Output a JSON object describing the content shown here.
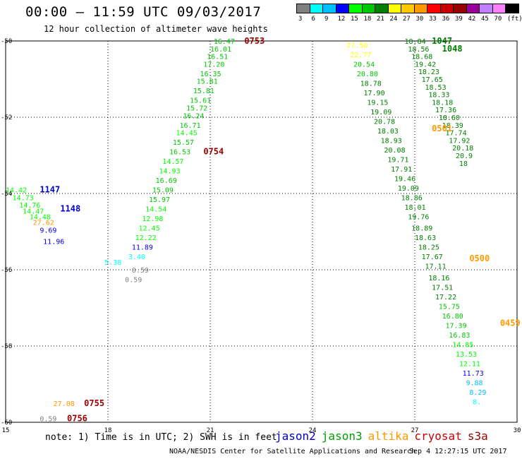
{
  "title": "00:00 – 11:59 UTC 09/03/2017",
  "subtitle": "12 hour collection of altimeter wave heights",
  "color_scale": {
    "labels": [
      "3",
      "6",
      "9",
      "12",
      "15",
      "18",
      "21",
      "24",
      "27",
      "30",
      "33",
      "36",
      "39",
      "42",
      "45",
      "70",
      "(ft)"
    ],
    "colors": [
      "#808080",
      "#00ffff",
      "#00bfff",
      "#0000ff",
      "#00ff00",
      "#00c800",
      "#008000",
      "#ffff00",
      "#ffc800",
      "#ff9900",
      "#ff0000",
      "#c80000",
      "#990000",
      "#990099",
      "#c080ff",
      "#ff80ff",
      "#000000"
    ]
  },
  "note": "note: 1) Time is in UTC; 2) SWH is in feet",
  "legend": [
    {
      "name": "jason2",
      "color": "#0000cc"
    },
    {
      "name": "jason3",
      "color": "#00a000"
    },
    {
      "name": "altika",
      "color": "#ff9900"
    },
    {
      "name": "cryosat",
      "color": "#cc0000"
    },
    {
      "name": "s3a",
      "color": "#990000"
    }
  ],
  "credit": "NOAA/NESDIS Center for Satellite Applications and Research",
  "timestamp": "Sep  4 12:27:15 UTC 2017",
  "chart_data": {
    "type": "scatter",
    "x_ticks": [
      "15",
      "18",
      "21",
      "24",
      "27",
      "30"
    ],
    "y_ticks": [
      "-50",
      "-52",
      "-54",
      "-56",
      "-58",
      "-60"
    ],
    "xlim": [
      15,
      30
    ],
    "ylim": [
      -60,
      -50
    ],
    "grid": true,
    "time_labels": [
      {
        "text": "1147",
        "lon": 16.0,
        "lat": -53.9,
        "color": "#0000cc"
      },
      {
        "text": "1148",
        "lon": 16.6,
        "lat": -54.4,
        "color": "#0000cc"
      },
      {
        "text": "0753",
        "lon": 22.0,
        "lat": -50.0,
        "color": "#990000"
      },
      {
        "text": "0754",
        "lon": 20.8,
        "lat": -52.9,
        "color": "#990000"
      },
      {
        "text": "0755",
        "lon": 17.3,
        "lat": -59.5,
        "color": "#990000"
      },
      {
        "text": "0756",
        "lon": 16.8,
        "lat": -59.9,
        "color": "#990000"
      },
      {
        "text": "1047",
        "lon": 27.5,
        "lat": -50.0,
        "color": "#008000"
      },
      {
        "text": "1048",
        "lon": 27.8,
        "lat": -50.2,
        "color": "#008000"
      },
      {
        "text": "0501",
        "lon": 27.5,
        "lat": -52.3,
        "color": "#ff9900"
      },
      {
        "text": "0500",
        "lon": 28.6,
        "lat": -55.7,
        "color": "#ff9900"
      },
      {
        "text": "0459",
        "lon": 29.5,
        "lat": -57.4,
        "color": "#ff9900"
      }
    ],
    "points": [
      {
        "v": "14.42",
        "lon": 15.0,
        "lat": -53.9,
        "color": "#00ff00"
      },
      {
        "v": "14.73",
        "lon": 15.2,
        "lat": -54.1,
        "color": "#00ff00"
      },
      {
        "v": "14.76",
        "lon": 15.4,
        "lat": -54.3,
        "color": "#00ff00"
      },
      {
        "v": "14.47",
        "lon": 15.5,
        "lat": -54.45,
        "color": "#00ff00"
      },
      {
        "v": "14.48",
        "lon": 15.7,
        "lat": -54.6,
        "color": "#00ff00"
      },
      {
        "v": "27.62",
        "lon": 15.8,
        "lat": -54.75,
        "color": "#ff9900"
      },
      {
        "v": "9.69",
        "lon": 16.0,
        "lat": -54.95,
        "color": "#0000ff"
      },
      {
        "v": "11.96",
        "lon": 16.1,
        "lat": -55.25,
        "color": "#0000ff"
      },
      {
        "v": "16.47",
        "lon": 21.1,
        "lat": -50.0,
        "color": "#00c800"
      },
      {
        "v": "16.01",
        "lon": 21.0,
        "lat": -50.2,
        "color": "#00c800"
      },
      {
        "v": "16.51",
        "lon": 20.9,
        "lat": -50.4,
        "color": "#00c800"
      },
      {
        "v": "17.20",
        "lon": 20.8,
        "lat": -50.6,
        "color": "#00c800"
      },
      {
        "v": "16.35",
        "lon": 20.7,
        "lat": -50.85,
        "color": "#00c800"
      },
      {
        "v": "15.81",
        "lon": 20.6,
        "lat": -51.05,
        "color": "#00c800"
      },
      {
        "v": "15.81",
        "lon": 20.5,
        "lat": -51.3,
        "color": "#00c800"
      },
      {
        "v": "15.61",
        "lon": 20.4,
        "lat": -51.55,
        "color": "#00c800"
      },
      {
        "v": "15.72",
        "lon": 20.3,
        "lat": -51.75,
        "color": "#00c800"
      },
      {
        "v": "16.24",
        "lon": 20.2,
        "lat": -51.95,
        "color": "#00c800"
      },
      {
        "v": "16.71",
        "lon": 20.1,
        "lat": -52.2,
        "color": "#00c800"
      },
      {
        "v": "14.45",
        "lon": 20.0,
        "lat": -52.4,
        "color": "#00ff00"
      },
      {
        "v": "15.57",
        "lon": 19.9,
        "lat": -52.65,
        "color": "#00c800"
      },
      {
        "v": "16.53",
        "lon": 19.8,
        "lat": -52.9,
        "color": "#00c800"
      },
      {
        "v": "14.57",
        "lon": 19.6,
        "lat": -53.15,
        "color": "#00ff00"
      },
      {
        "v": "14.93",
        "lon": 19.5,
        "lat": -53.4,
        "color": "#00ff00"
      },
      {
        "v": "16.69",
        "lon": 19.4,
        "lat": -53.65,
        "color": "#00c800"
      },
      {
        "v": "15.09",
        "lon": 19.3,
        "lat": -53.9,
        "color": "#00c800"
      },
      {
        "v": "15.97",
        "lon": 19.2,
        "lat": -54.15,
        "color": "#00c800"
      },
      {
        "v": "14.54",
        "lon": 19.1,
        "lat": -54.4,
        "color": "#00ff00"
      },
      {
        "v": "12.98",
        "lon": 19.0,
        "lat": -54.65,
        "color": "#00ff00"
      },
      {
        "v": "12.45",
        "lon": 18.9,
        "lat": -54.9,
        "color": "#00ff00"
      },
      {
        "v": "12.22",
        "lon": 18.8,
        "lat": -55.15,
        "color": "#00ff00"
      },
      {
        "v": "11.89",
        "lon": 18.7,
        "lat": -55.4,
        "color": "#0000ff"
      },
      {
        "v": "3.40",
        "lon": 18.6,
        "lat": -55.65,
        "color": "#00ffff"
      },
      {
        "v": "5.38",
        "lon": 17.9,
        "lat": -55.8,
        "color": "#00ffff"
      },
      {
        "v": "0.59",
        "lon": 18.7,
        "lat": -56.0,
        "color": "#808080"
      },
      {
        "v": "0.59",
        "lon": 18.5,
        "lat": -56.25,
        "color": "#808080"
      },
      {
        "v": "27.50",
        "lon": 25.0,
        "lat": -50.1,
        "color": "#ffff00"
      },
      {
        "v": "22.77",
        "lon": 25.1,
        "lat": -50.35,
        "color": "#ffff00"
      },
      {
        "v": "20.54",
        "lon": 25.2,
        "lat": -50.6,
        "color": "#00c800"
      },
      {
        "v": "20.80",
        "lon": 25.3,
        "lat": -50.85,
        "color": "#00c800"
      },
      {
        "v": "18.78",
        "lon": 25.4,
        "lat": -51.1,
        "color": "#008000"
      },
      {
        "v": "17.90",
        "lon": 25.5,
        "lat": -51.35,
        "color": "#008000"
      },
      {
        "v": "19.15",
        "lon": 25.6,
        "lat": -51.6,
        "color": "#008000"
      },
      {
        "v": "19.09",
        "lon": 25.7,
        "lat": -51.85,
        "color": "#008000"
      },
      {
        "v": "20.78",
        "lon": 25.8,
        "lat": -52.1,
        "color": "#008000"
      },
      {
        "v": "18.03",
        "lon": 25.9,
        "lat": -52.35,
        "color": "#008000"
      },
      {
        "v": "18.93",
        "lon": 26.0,
        "lat": -52.6,
        "color": "#008000"
      },
      {
        "v": "20.08",
        "lon": 26.1,
        "lat": -52.85,
        "color": "#008000"
      },
      {
        "v": "19.71",
        "lon": 26.2,
        "lat": -53.1,
        "color": "#008000"
      },
      {
        "v": "17.91",
        "lon": 26.3,
        "lat": -53.35,
        "color": "#008000"
      },
      {
        "v": "19.46",
        "lon": 26.4,
        "lat": -53.6,
        "color": "#008000"
      },
      {
        "v": "19.09",
        "lon": 26.5,
        "lat": -53.85,
        "color": "#008000"
      },
      {
        "v": "18.86",
        "lon": 26.6,
        "lat": -54.1,
        "color": "#008000"
      },
      {
        "v": "18.01",
        "lon": 26.7,
        "lat": -54.35,
        "color": "#008000"
      },
      {
        "v": "19.76",
        "lon": 26.8,
        "lat": -54.6,
        "color": "#008000"
      },
      {
        "v": "18.89",
        "lon": 26.9,
        "lat": -54.9,
        "color": "#008000"
      },
      {
        "v": "18.63",
        "lon": 27.0,
        "lat": -55.15,
        "color": "#008000"
      },
      {
        "v": "18.25",
        "lon": 27.1,
        "lat": -55.4,
        "color": "#008000"
      },
      {
        "v": "17.67",
        "lon": 27.2,
        "lat": -55.65,
        "color": "#008000"
      },
      {
        "v": "17.11",
        "lon": 27.3,
        "lat": -55.9,
        "color": "#008000"
      },
      {
        "v": "18.16",
        "lon": 27.4,
        "lat": -56.2,
        "color": "#008000"
      },
      {
        "v": "17.51",
        "lon": 27.5,
        "lat": -56.45,
        "color": "#008000"
      },
      {
        "v": "17.22",
        "lon": 27.6,
        "lat": -56.7,
        "color": "#008000"
      },
      {
        "v": "15.75",
        "lon": 27.7,
        "lat": -56.95,
        "color": "#00c800"
      },
      {
        "v": "16.80",
        "lon": 27.8,
        "lat": -57.2,
        "color": "#00c800"
      },
      {
        "v": "17.39",
        "lon": 27.9,
        "lat": -57.45,
        "color": "#00c800"
      },
      {
        "v": "16.83",
        "lon": 28.0,
        "lat": -57.7,
        "color": "#00c800"
      },
      {
        "v": "14.85",
        "lon": 28.1,
        "lat": -57.95,
        "color": "#00ff00"
      },
      {
        "v": "13.53",
        "lon": 28.2,
        "lat": -58.2,
        "color": "#00ff00"
      },
      {
        "v": "12.11",
        "lon": 28.3,
        "lat": -58.45,
        "color": "#00ff00"
      },
      {
        "v": "11.73",
        "lon": 28.4,
        "lat": -58.7,
        "color": "#0000ff"
      },
      {
        "v": "9.88",
        "lon": 28.5,
        "lat": -58.95,
        "color": "#00bfff"
      },
      {
        "v": "8.29",
        "lon": 28.6,
        "lat": -59.2,
        "color": "#00bfff"
      },
      {
        "v": "8.",
        "lon": 28.7,
        "lat": -59.45,
        "color": "#00ffff"
      },
      {
        "v": "18.84",
        "lon": 26.7,
        "lat": -50.0,
        "color": "#008000"
      },
      {
        "v": "18.56",
        "lon": 26.8,
        "lat": -50.2,
        "color": "#008000"
      },
      {
        "v": "18.68",
        "lon": 26.9,
        "lat": -50.4,
        "color": "#008000"
      },
      {
        "v": "19.42",
        "lon": 27.0,
        "lat": -50.6,
        "color": "#008000"
      },
      {
        "v": "18.23",
        "lon": 27.1,
        "lat": -50.8,
        "color": "#008000"
      },
      {
        "v": "17.65",
        "lon": 27.2,
        "lat": -51.0,
        "color": "#008000"
      },
      {
        "v": "18.53",
        "lon": 27.3,
        "lat": -51.2,
        "color": "#008000"
      },
      {
        "v": "18.33",
        "lon": 27.4,
        "lat": -51.4,
        "color": "#008000"
      },
      {
        "v": "18.18",
        "lon": 27.5,
        "lat": -51.6,
        "color": "#008000"
      },
      {
        "v": "17.36",
        "lon": 27.6,
        "lat": -51.8,
        "color": "#008000"
      },
      {
        "v": "18.60",
        "lon": 27.7,
        "lat": -52.0,
        "color": "#008000"
      },
      {
        "v": "18.39",
        "lon": 27.8,
        "lat": -52.2,
        "color": "#008000"
      },
      {
        "v": "17.74",
        "lon": 27.9,
        "lat": -52.4,
        "color": "#008000"
      },
      {
        "v": "17.92",
        "lon": 28.0,
        "lat": -52.6,
        "color": "#008000"
      },
      {
        "v": "20.18",
        "lon": 28.1,
        "lat": -52.8,
        "color": "#008000"
      },
      {
        "v": "20.9",
        "lon": 28.2,
        "lat": -53.0,
        "color": "#008000"
      },
      {
        "v": "18",
        "lon": 28.3,
        "lat": -53.2,
        "color": "#008000"
      },
      {
        "v": "27.08",
        "lon": 16.4,
        "lat": -59.5,
        "color": "#ff9900"
      },
      {
        "v": "0.59",
        "lon": 16.0,
        "lat": -59.9,
        "color": "#808080"
      }
    ]
  }
}
